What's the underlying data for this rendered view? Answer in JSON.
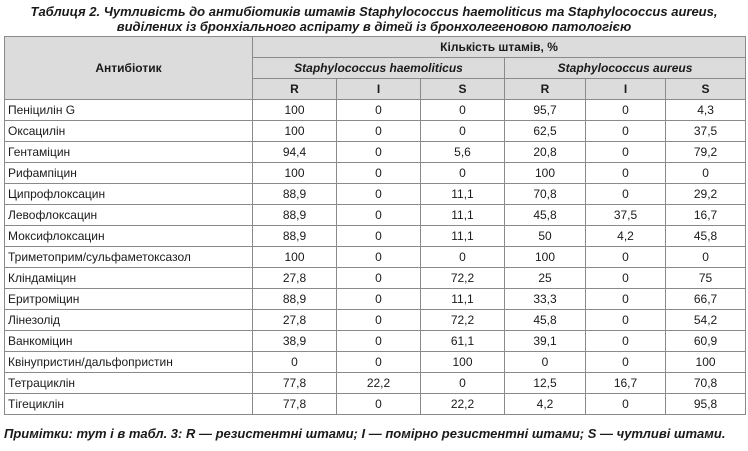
{
  "caption": {
    "line1": "Таблиця 2. Чутливість до антибіотиків штамів Staphylococcus haemoliticus та Staphylococcus aureus,",
    "line2": "виділених із бронхіального аспірату в дітей із бронхолегеновою патологією"
  },
  "header": {
    "antibiotic": "Антибіотик",
    "count_label": "Кількість штамів, %",
    "species": [
      "Staphylococcus haemoliticus",
      "Staphylococcus aureus"
    ],
    "cols": [
      "R",
      "I",
      "S",
      "R",
      "I",
      "S"
    ]
  },
  "rows": [
    {
      "name": "Пеніцилін G",
      "v": [
        "100",
        "0",
        "0",
        "95,7",
        "0",
        "4,3"
      ]
    },
    {
      "name": "Оксацилін",
      "v": [
        "100",
        "0",
        "0",
        "62,5",
        "0",
        "37,5"
      ]
    },
    {
      "name": "Гентаміцин",
      "v": [
        "94,4",
        "0",
        "5,6",
        "20,8",
        "0",
        "79,2"
      ]
    },
    {
      "name": "Рифампіцин",
      "v": [
        "100",
        "0",
        "0",
        "100",
        "0",
        "0"
      ]
    },
    {
      "name": "Ципрофлоксацин",
      "v": [
        "88,9",
        "0",
        "11,1",
        "70,8",
        "0",
        "29,2"
      ]
    },
    {
      "name": "Левофлоксацин",
      "v": [
        "88,9",
        "0",
        "11,1",
        "45,8",
        "37,5",
        "16,7"
      ]
    },
    {
      "name": "Моксифлоксацин",
      "v": [
        "88,9",
        "0",
        "11,1",
        "50",
        "4,2",
        "45,8"
      ]
    },
    {
      "name": "Триметоприм/сульфаметоксазол",
      "v": [
        "100",
        "0",
        "0",
        "100",
        "0",
        "0"
      ]
    },
    {
      "name": "Кліндаміцин",
      "v": [
        "27,8",
        "0",
        "72,2",
        "25",
        "0",
        "75"
      ]
    },
    {
      "name": "Еритроміцин",
      "v": [
        "88,9",
        "0",
        "11,1",
        "33,3",
        "0",
        "66,7"
      ]
    },
    {
      "name": "Лінезолід",
      "v": [
        "27,8",
        "0",
        "72,2",
        "45,8",
        "0",
        "54,2"
      ]
    },
    {
      "name": "Ванкоміцин",
      "v": [
        "38,9",
        "0",
        "61,1",
        "39,1",
        "0",
        "60,9"
      ]
    },
    {
      "name": "Квінупристин/дальфопристин",
      "v": [
        "0",
        "0",
        "100",
        "0",
        "0",
        "100"
      ]
    },
    {
      "name": "Тетрациклін",
      "v": [
        "77,8",
        "22,2",
        "0",
        "12,5",
        "16,7",
        "70,8"
      ]
    },
    {
      "name": "Тігециклін",
      "v": [
        "77,8",
        "0",
        "22,2",
        "4,2",
        "0",
        "95,8"
      ]
    }
  ],
  "note": "Примітки: тут і в табл. 3: R — резистентні штами; I — помірно резистентні штами; S — чутливі штами."
}
